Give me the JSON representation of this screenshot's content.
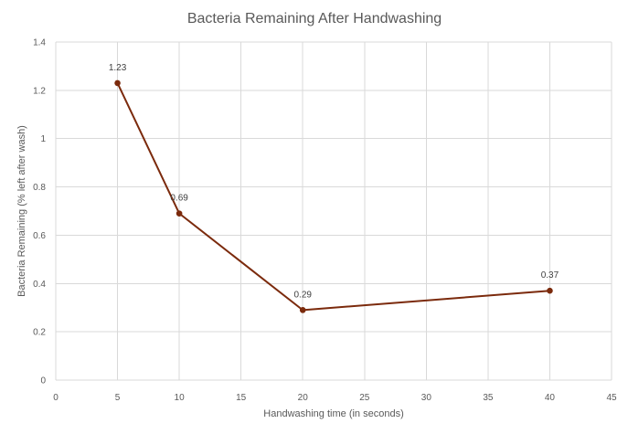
{
  "chart_data": {
    "type": "scatter",
    "title": "Bacteria Remaining After Handwashing",
    "xlabel": "Handwashing time (in seconds)",
    "ylabel": "Bacteria Remaining (% left after wash)",
    "xlim": [
      0,
      45
    ],
    "ylim": [
      0,
      1.4
    ],
    "xticks": [
      0,
      5,
      10,
      15,
      20,
      25,
      30,
      35,
      40,
      45
    ],
    "yticks": [
      0,
      0.2,
      0.4,
      0.6,
      0.8,
      1,
      1.2,
      1.4
    ],
    "xtick_labels": [
      "0",
      "5",
      "10",
      "15",
      "20",
      "25",
      "30",
      "35",
      "40",
      "45"
    ],
    "ytick_labels": [
      "0",
      "0.2",
      "0.4",
      "0.6",
      "0.8",
      "1",
      "1.2",
      "1.4"
    ],
    "grid": true,
    "connected": true,
    "series": [
      {
        "x": [
          5,
          10,
          20,
          40
        ],
        "y": [
          1.23,
          0.69,
          0.29,
          0.37
        ],
        "labels": [
          "1.23",
          "0.69",
          "0.29",
          "0.37"
        ],
        "color": "#7b2a0c"
      }
    ]
  }
}
